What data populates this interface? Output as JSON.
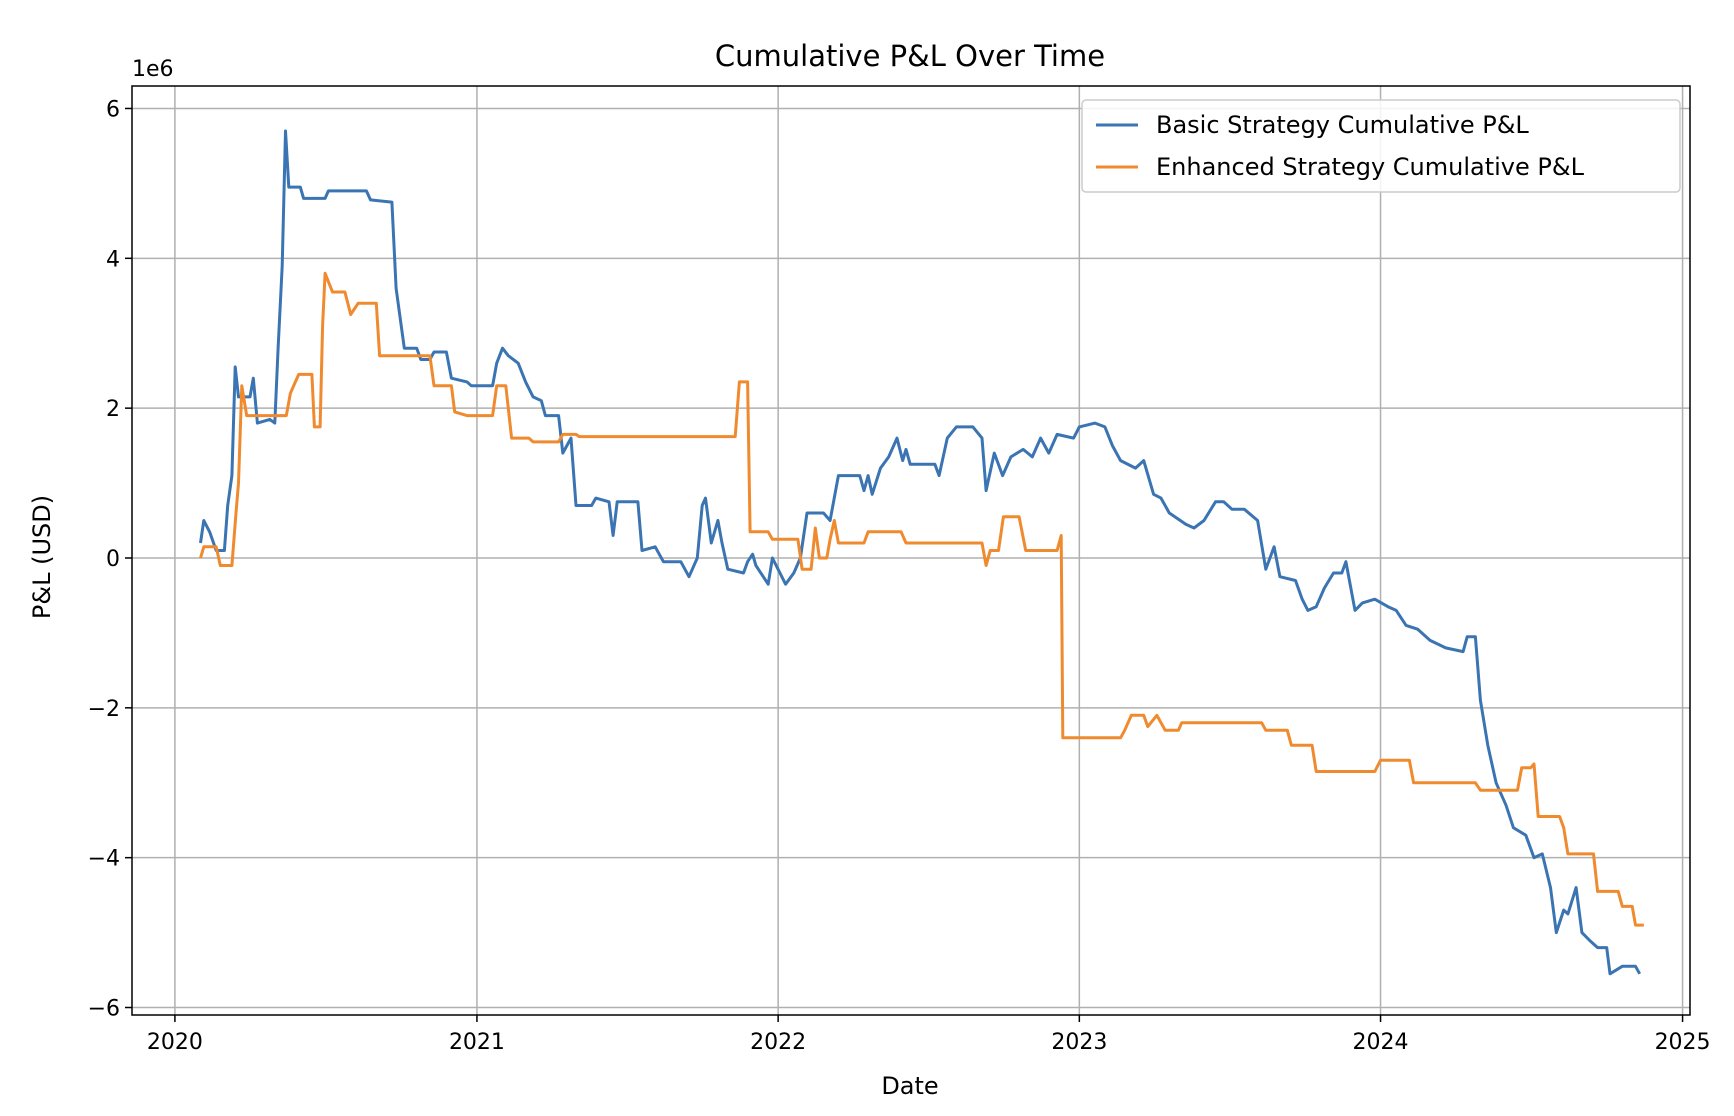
{
  "chart_data": {
    "type": "line",
    "title": "Cumulative P&L Over Time",
    "xlabel": "Date",
    "ylabel": "P&L (USD)",
    "y_multiplier_label": "1e6",
    "xlim": [
      "2019-11-10",
      "2025-01-10"
    ],
    "ylim": [
      -6.1,
      6.3
    ],
    "x_ticks": [
      "2020",
      "2021",
      "2022",
      "2023",
      "2024",
      "2025"
    ],
    "y_ticks": [
      -6,
      -4,
      -2,
      0,
      2,
      4,
      6
    ],
    "y_tick_labels": [
      "−6",
      "−4",
      "−2",
      "0",
      "2",
      "4",
      "6"
    ],
    "grid": true,
    "legend": "top-right",
    "colors": {
      "basic": "#3a74b2",
      "enhanced": "#f08a2e",
      "grid": "#b0b0b0"
    },
    "series": [
      {
        "name": "Basic Strategy Cumulative P&L",
        "color": "#3a74b2",
        "points": [
          [
            "2020-02-01",
            0.2
          ],
          [
            "2020-02-05",
            0.5
          ],
          [
            "2020-02-12",
            0.35
          ],
          [
            "2020-02-20",
            0.1
          ],
          [
            "2020-03-01",
            0.1
          ],
          [
            "2020-03-05",
            0.7
          ],
          [
            "2020-03-10",
            1.1
          ],
          [
            "2020-03-14",
            2.55
          ],
          [
            "2020-03-18",
            2.15
          ],
          [
            "2020-04-01",
            2.15
          ],
          [
            "2020-04-05",
            2.4
          ],
          [
            "2020-04-10",
            1.8
          ],
          [
            "2020-04-25",
            1.85
          ],
          [
            "2020-05-01",
            1.8
          ],
          [
            "2020-05-05",
            2.8
          ],
          [
            "2020-05-10",
            3.9
          ],
          [
            "2020-05-14",
            5.7
          ],
          [
            "2020-05-18",
            4.95
          ],
          [
            "2020-06-01",
            4.95
          ],
          [
            "2020-06-05",
            4.8
          ],
          [
            "2020-07-01",
            4.8
          ],
          [
            "2020-07-05",
            4.9
          ],
          [
            "2020-08-20",
            4.9
          ],
          [
            "2020-08-25",
            4.78
          ],
          [
            "2020-09-20",
            4.75
          ],
          [
            "2020-09-25",
            3.6
          ],
          [
            "2020-10-05",
            2.8
          ],
          [
            "2020-10-20",
            2.8
          ],
          [
            "2020-10-25",
            2.65
          ],
          [
            "2020-11-05",
            2.65
          ],
          [
            "2020-11-10",
            2.75
          ],
          [
            "2020-11-25",
            2.75
          ],
          [
            "2020-12-01",
            2.4
          ],
          [
            "2020-12-20",
            2.35
          ],
          [
            "2020-12-25",
            2.3
          ],
          [
            "2021-01-20",
            2.3
          ],
          [
            "2021-01-25",
            2.6
          ],
          [
            "2021-02-01",
            2.8
          ],
          [
            "2021-02-08",
            2.7
          ],
          [
            "2021-02-20",
            2.6
          ],
          [
            "2021-03-01",
            2.35
          ],
          [
            "2021-03-10",
            2.15
          ],
          [
            "2021-03-20",
            2.1
          ],
          [
            "2021-03-25",
            1.9
          ],
          [
            "2021-04-10",
            1.9
          ],
          [
            "2021-04-15",
            1.4
          ],
          [
            "2021-04-25",
            1.6
          ],
          [
            "2021-05-01",
            0.7
          ],
          [
            "2021-05-20",
            0.7
          ],
          [
            "2021-05-25",
            0.8
          ],
          [
            "2021-06-10",
            0.75
          ],
          [
            "2021-06-15",
            0.3
          ],
          [
            "2021-06-20",
            0.75
          ],
          [
            "2021-07-15",
            0.75
          ],
          [
            "2021-07-20",
            0.1
          ],
          [
            "2021-08-05",
            0.15
          ],
          [
            "2021-08-15",
            -0.05
          ],
          [
            "2021-09-05",
            -0.05
          ],
          [
            "2021-09-15",
            -0.25
          ],
          [
            "2021-09-25",
            0.0
          ],
          [
            "2021-10-01",
            0.7
          ],
          [
            "2021-10-05",
            0.8
          ],
          [
            "2021-10-12",
            0.2
          ],
          [
            "2021-10-20",
            0.5
          ],
          [
            "2021-10-25",
            0.2
          ],
          [
            "2021-11-01",
            -0.15
          ],
          [
            "2021-11-20",
            -0.2
          ],
          [
            "2021-11-25",
            -0.05
          ],
          [
            "2021-12-01",
            0.05
          ],
          [
            "2021-12-05",
            -0.1
          ],
          [
            "2021-12-20",
            -0.35
          ],
          [
            "2021-12-25",
            0.0
          ],
          [
            "2022-01-10",
            -0.35
          ],
          [
            "2022-01-20",
            -0.2
          ],
          [
            "2022-01-28",
            0.0
          ],
          [
            "2022-02-05",
            0.6
          ],
          [
            "2022-02-25",
            0.6
          ],
          [
            "2022-03-05",
            0.5
          ],
          [
            "2022-03-15",
            1.1
          ],
          [
            "2022-04-10",
            1.1
          ],
          [
            "2022-04-15",
            0.9
          ],
          [
            "2022-04-20",
            1.1
          ],
          [
            "2022-04-25",
            0.85
          ],
          [
            "2022-05-05",
            1.2
          ],
          [
            "2022-05-15",
            1.35
          ],
          [
            "2022-05-25",
            1.6
          ],
          [
            "2022-06-01",
            1.3
          ],
          [
            "2022-06-05",
            1.45
          ],
          [
            "2022-06-10",
            1.25
          ],
          [
            "2022-07-10",
            1.25
          ],
          [
            "2022-07-15",
            1.1
          ],
          [
            "2022-07-25",
            1.6
          ],
          [
            "2022-08-05",
            1.75
          ],
          [
            "2022-08-25",
            1.75
          ],
          [
            "2022-09-05",
            1.6
          ],
          [
            "2022-09-10",
            0.9
          ],
          [
            "2022-09-20",
            1.4
          ],
          [
            "2022-09-30",
            1.1
          ],
          [
            "2022-10-10",
            1.35
          ],
          [
            "2022-10-25",
            1.45
          ],
          [
            "2022-11-05",
            1.35
          ],
          [
            "2022-11-15",
            1.6
          ],
          [
            "2022-11-25",
            1.4
          ],
          [
            "2022-12-05",
            1.65
          ],
          [
            "2022-12-25",
            1.6
          ],
          [
            "2023-01-01",
            1.75
          ],
          [
            "2023-01-20",
            1.8
          ],
          [
            "2023-02-01",
            1.75
          ],
          [
            "2023-02-10",
            1.5
          ],
          [
            "2023-02-20",
            1.3
          ],
          [
            "2023-03-10",
            1.2
          ],
          [
            "2023-03-20",
            1.3
          ],
          [
            "2023-04-01",
            0.85
          ],
          [
            "2023-04-10",
            0.8
          ],
          [
            "2023-04-20",
            0.6
          ],
          [
            "2023-05-10",
            0.45
          ],
          [
            "2023-05-20",
            0.4
          ],
          [
            "2023-06-01",
            0.5
          ],
          [
            "2023-06-15",
            0.75
          ],
          [
            "2023-06-25",
            0.75
          ],
          [
            "2023-07-05",
            0.65
          ],
          [
            "2023-07-20",
            0.65
          ],
          [
            "2023-08-05",
            0.5
          ],
          [
            "2023-08-15",
            -0.15
          ],
          [
            "2023-08-25",
            0.15
          ],
          [
            "2023-09-01",
            -0.25
          ],
          [
            "2023-09-20",
            -0.3
          ],
          [
            "2023-09-28",
            -0.55
          ],
          [
            "2023-10-05",
            -0.7
          ],
          [
            "2023-10-15",
            -0.65
          ],
          [
            "2023-10-25",
            -0.4
          ],
          [
            "2023-11-05",
            -0.2
          ],
          [
            "2023-11-15",
            -0.2
          ],
          [
            "2023-11-20",
            -0.05
          ],
          [
            "2023-12-01",
            -0.7
          ],
          [
            "2023-12-10",
            -0.6
          ],
          [
            "2023-12-25",
            -0.55
          ],
          [
            "2024-01-10",
            -0.65
          ],
          [
            "2024-01-20",
            -0.7
          ],
          [
            "2024-02-01",
            -0.9
          ],
          [
            "2024-02-15",
            -0.95
          ],
          [
            "2024-03-01",
            -1.1
          ],
          [
            "2024-03-20",
            -1.2
          ],
          [
            "2024-04-10",
            -1.25
          ],
          [
            "2024-04-15",
            -1.05
          ],
          [
            "2024-04-25",
            -1.05
          ],
          [
            "2024-05-01",
            -1.9
          ],
          [
            "2024-05-10",
            -2.5
          ],
          [
            "2024-05-20",
            -3.0
          ],
          [
            "2024-06-01",
            -3.3
          ],
          [
            "2024-06-10",
            -3.6
          ],
          [
            "2024-06-25",
            -3.7
          ],
          [
            "2024-07-05",
            -4.0
          ],
          [
            "2024-07-15",
            -3.95
          ],
          [
            "2024-07-25",
            -4.4
          ],
          [
            "2024-08-01",
            -5.0
          ],
          [
            "2024-08-10",
            -4.7
          ],
          [
            "2024-08-15",
            -4.75
          ],
          [
            "2024-08-25",
            -4.4
          ],
          [
            "2024-09-01",
            -5.0
          ],
          [
            "2024-09-10",
            -5.1
          ],
          [
            "2024-09-20",
            -5.2
          ],
          [
            "2024-10-01",
            -5.2
          ],
          [
            "2024-10-05",
            -5.55
          ],
          [
            "2024-10-20",
            -5.45
          ],
          [
            "2024-11-05",
            -5.45
          ],
          [
            "2024-11-10",
            -5.55
          ]
        ]
      },
      {
        "name": "Enhanced Strategy Cumulative P&L",
        "color": "#f08a2e",
        "points": [
          [
            "2020-02-01",
            0.0
          ],
          [
            "2020-02-05",
            0.15
          ],
          [
            "2020-02-20",
            0.15
          ],
          [
            "2020-02-25",
            -0.1
          ],
          [
            "2020-03-10",
            -0.1
          ],
          [
            "2020-03-15",
            0.6
          ],
          [
            "2020-03-18",
            1.0
          ],
          [
            "2020-03-22",
            2.3
          ],
          [
            "2020-03-28",
            1.9
          ],
          [
            "2020-05-15",
            1.9
          ],
          [
            "2020-05-20",
            2.2
          ],
          [
            "2020-05-30",
            2.45
          ],
          [
            "2020-06-15",
            2.45
          ],
          [
            "2020-06-18",
            1.75
          ],
          [
            "2020-06-25",
            1.75
          ],
          [
            "2020-06-28",
            3.1
          ],
          [
            "2020-07-01",
            3.8
          ],
          [
            "2020-07-10",
            3.55
          ],
          [
            "2020-07-25",
            3.55
          ],
          [
            "2020-08-01",
            3.25
          ],
          [
            "2020-08-10",
            3.4
          ],
          [
            "2020-09-01",
            3.4
          ],
          [
            "2020-09-05",
            2.7
          ],
          [
            "2020-10-20",
            2.7
          ],
          [
            "2020-11-05",
            2.7
          ],
          [
            "2020-11-10",
            2.3
          ],
          [
            "2020-12-01",
            2.3
          ],
          [
            "2020-12-05",
            1.95
          ],
          [
            "2020-12-20",
            1.9
          ],
          [
            "2021-01-20",
            1.9
          ],
          [
            "2021-01-25",
            2.3
          ],
          [
            "2021-02-05",
            2.3
          ],
          [
            "2021-02-12",
            1.6
          ],
          [
            "2021-03-05",
            1.6
          ],
          [
            "2021-03-10",
            1.55
          ],
          [
            "2021-04-10",
            1.55
          ],
          [
            "2021-04-15",
            1.65
          ],
          [
            "2021-05-01",
            1.65
          ],
          [
            "2021-05-05",
            1.62
          ],
          [
            "2021-11-10",
            1.62
          ],
          [
            "2021-11-15",
            2.35
          ],
          [
            "2021-11-25",
            2.35
          ],
          [
            "2021-11-28",
            0.35
          ],
          [
            "2021-12-20",
            0.35
          ],
          [
            "2021-12-25",
            0.25
          ],
          [
            "2022-01-25",
            0.25
          ],
          [
            "2022-01-30",
            -0.15
          ],
          [
            "2022-02-10",
            -0.15
          ],
          [
            "2022-02-15",
            0.4
          ],
          [
            "2022-02-20",
            0.0
          ],
          [
            "2022-03-01",
            0.0
          ],
          [
            "2022-03-05",
            0.25
          ],
          [
            "2022-03-10",
            0.5
          ],
          [
            "2022-03-15",
            0.2
          ],
          [
            "2022-04-15",
            0.2
          ],
          [
            "2022-04-20",
            0.35
          ],
          [
            "2022-05-30",
            0.35
          ],
          [
            "2022-06-05",
            0.2
          ],
          [
            "2022-09-05",
            0.2
          ],
          [
            "2022-09-10",
            -0.1
          ],
          [
            "2022-09-15",
            0.1
          ],
          [
            "2022-09-25",
            0.1
          ],
          [
            "2022-10-01",
            0.55
          ],
          [
            "2022-10-20",
            0.55
          ],
          [
            "2022-10-28",
            0.1
          ],
          [
            "2022-12-05",
            0.1
          ],
          [
            "2022-12-10",
            0.3
          ],
          [
            "2022-12-12",
            -2.4
          ],
          [
            "2023-02-20",
            -2.4
          ],
          [
            "2023-02-25",
            -2.3
          ],
          [
            "2023-03-05",
            -2.1
          ],
          [
            "2023-03-20",
            -2.1
          ],
          [
            "2023-03-25",
            -2.25
          ],
          [
            "2023-04-05",
            -2.1
          ],
          [
            "2023-04-15",
            -2.3
          ],
          [
            "2023-05-01",
            -2.3
          ],
          [
            "2023-05-05",
            -2.2
          ],
          [
            "2023-08-10",
            -2.2
          ],
          [
            "2023-08-15",
            -2.3
          ],
          [
            "2023-09-10",
            -2.3
          ],
          [
            "2023-09-15",
            -2.5
          ],
          [
            "2023-10-10",
            -2.5
          ],
          [
            "2023-10-15",
            -2.85
          ],
          [
            "2023-12-25",
            -2.85
          ],
          [
            "2024-01-01",
            -2.7
          ],
          [
            "2024-02-05",
            -2.7
          ],
          [
            "2024-02-10",
            -3.0
          ],
          [
            "2024-04-25",
            -3.0
          ],
          [
            "2024-05-01",
            -3.1
          ],
          [
            "2024-06-15",
            -3.1
          ],
          [
            "2024-06-20",
            -2.8
          ],
          [
            "2024-07-01",
            -2.8
          ],
          [
            "2024-07-05",
            -2.75
          ],
          [
            "2024-07-10",
            -3.45
          ],
          [
            "2024-08-05",
            -3.45
          ],
          [
            "2024-08-10",
            -3.6
          ],
          [
            "2024-08-15",
            -3.95
          ],
          [
            "2024-09-15",
            -3.95
          ],
          [
            "2024-09-20",
            -4.45
          ],
          [
            "2024-10-15",
            -4.45
          ],
          [
            "2024-10-20",
            -4.65
          ],
          [
            "2024-11-01",
            -4.65
          ],
          [
            "2024-11-05",
            -4.9
          ],
          [
            "2024-11-15",
            -4.9
          ]
        ]
      }
    ]
  }
}
